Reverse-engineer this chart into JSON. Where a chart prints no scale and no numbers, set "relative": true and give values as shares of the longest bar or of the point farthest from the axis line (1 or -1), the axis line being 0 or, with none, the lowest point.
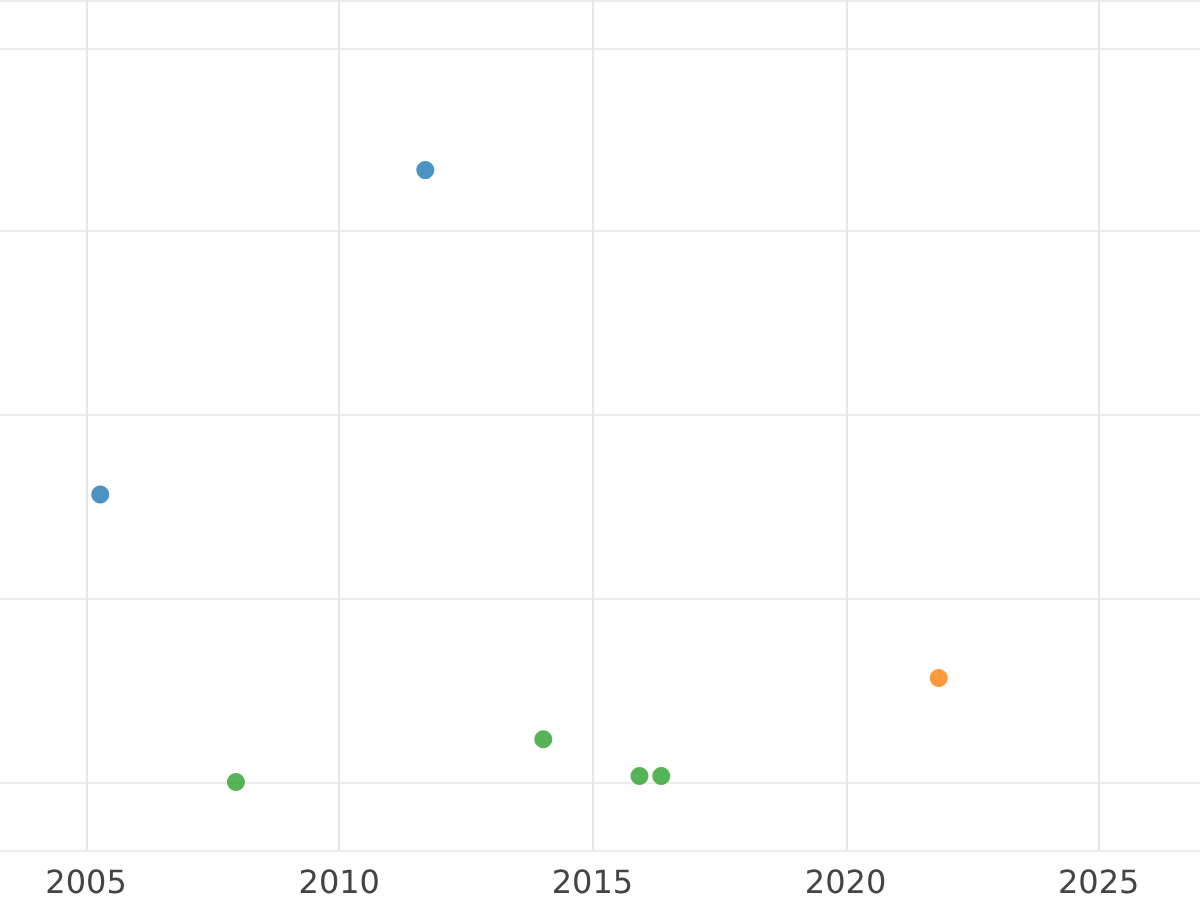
{
  "chart_data": {
    "type": "scatter",
    "relative": true,
    "xlim": [
      2003.3,
      2027
    ],
    "xticks": [
      2005,
      2010,
      2015,
      2020,
      2025
    ],
    "grid": true,
    "marker": "circle",
    "series": [
      {
        "color": "#1f77b4",
        "x": [
          2005.28,
          2011.7
        ],
        "values": [
          0.47,
          1
        ]
      },
      {
        "color": "#ff7f0e",
        "x": [
          2021.84
        ],
        "values": [
          0.17
        ]
      },
      {
        "color": "#2ca02c",
        "x": [
          2007.96,
          2014.03,
          2015.93,
          2016.36
        ],
        "values": [
          0,
          0.07,
          0.01,
          0.01
        ]
      }
    ]
  }
}
